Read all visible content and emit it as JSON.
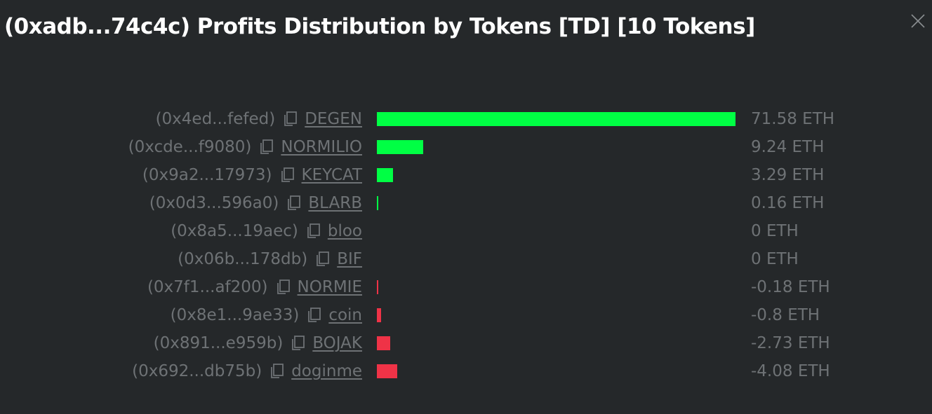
{
  "title": "(0xadb...74c4c) Profits Distribution by Tokens [TD] [10 Tokens]",
  "colors": {
    "positive": "#00ff44",
    "negative": "#ef3347",
    "text": "#6e7275",
    "background": "#25282a"
  },
  "icons": {
    "close": "close-icon",
    "copy": "copy-icon"
  },
  "chart_data": {
    "type": "bar",
    "orientation": "horizontal",
    "unit": "ETH",
    "categories": [
      "DEGEN",
      "NORMILIO",
      "KEYCAT",
      "BLARB",
      "bloo",
      "BIF",
      "NORMIE",
      "coin",
      "BOJAK",
      "doginme"
    ],
    "values": [
      71.58,
      9.24,
      3.29,
      0.16,
      0,
      0,
      -0.18,
      -0.8,
      -2.73,
      -4.08
    ],
    "rows": [
      {
        "addr": "(0x4ed...fefed)",
        "symbol": "DEGEN",
        "value": 71.58,
        "value_label": "71.58 ETH"
      },
      {
        "addr": "(0xcde...f9080)",
        "symbol": "NORMILIO",
        "value": 9.24,
        "value_label": "9.24 ETH"
      },
      {
        "addr": "(0x9a2...17973)",
        "symbol": "KEYCAT",
        "value": 3.29,
        "value_label": "3.29 ETH"
      },
      {
        "addr": "(0x0d3...596a0)",
        "symbol": "BLARB",
        "value": 0.16,
        "value_label": "0.16 ETH"
      },
      {
        "addr": "(0x8a5...19aec)",
        "symbol": "bloo",
        "value": 0,
        "value_label": "0 ETH"
      },
      {
        "addr": "(0x06b...178db)",
        "symbol": "BIF",
        "value": 0,
        "value_label": "0 ETH"
      },
      {
        "addr": "(0x7f1...af200)",
        "symbol": "NORMIE",
        "value": -0.18,
        "value_label": "-0.18 ETH"
      },
      {
        "addr": "(0x8e1...9ae33)",
        "symbol": "coin",
        "value": -0.8,
        "value_label": "-0.8 ETH"
      },
      {
        "addr": "(0x891...e959b)",
        "symbol": "BOJAK",
        "value": -2.73,
        "value_label": "-2.73 ETH"
      },
      {
        "addr": "(0x692...db75b)",
        "symbol": "doginme",
        "value": -4.08,
        "value_label": "-4.08 ETH"
      }
    ]
  }
}
